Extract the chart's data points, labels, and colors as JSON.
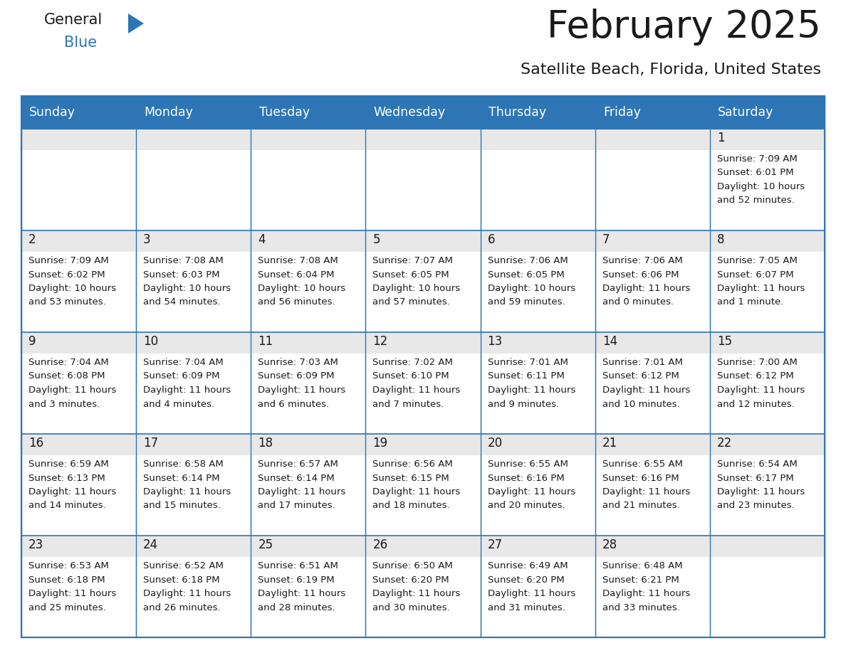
{
  "title": "February 2025",
  "subtitle": "Satellite Beach, Florida, United States",
  "days_of_week": [
    "Sunday",
    "Monday",
    "Tuesday",
    "Wednesday",
    "Thursday",
    "Friday",
    "Saturday"
  ],
  "header_bg": "#2e75b6",
  "header_text": "#ffffff",
  "cell_bg": "#ffffff",
  "cell_top_bg": "#e8e8e8",
  "cell_border": "#2e75b6",
  "day_num_color": "#1a1a1a",
  "info_text_color": "#1a1a1a",
  "title_color": "#1a1a1a",
  "subtitle_color": "#1a1a1a",
  "logo_general_color": "#1a1a1a",
  "logo_blue_color": "#2e75b6",
  "calendar_data": [
    [
      null,
      null,
      null,
      null,
      null,
      null,
      {
        "day": 1,
        "sunrise": "7:09 AM",
        "sunset": "6:01 PM",
        "daylight_line1": "Daylight: 10 hours",
        "daylight_line2": "and 52 minutes."
      }
    ],
    [
      {
        "day": 2,
        "sunrise": "7:09 AM",
        "sunset": "6:02 PM",
        "daylight_line1": "Daylight: 10 hours",
        "daylight_line2": "and 53 minutes."
      },
      {
        "day": 3,
        "sunrise": "7:08 AM",
        "sunset": "6:03 PM",
        "daylight_line1": "Daylight: 10 hours",
        "daylight_line2": "and 54 minutes."
      },
      {
        "day": 4,
        "sunrise": "7:08 AM",
        "sunset": "6:04 PM",
        "daylight_line1": "Daylight: 10 hours",
        "daylight_line2": "and 56 minutes."
      },
      {
        "day": 5,
        "sunrise": "7:07 AM",
        "sunset": "6:05 PM",
        "daylight_line1": "Daylight: 10 hours",
        "daylight_line2": "and 57 minutes."
      },
      {
        "day": 6,
        "sunrise": "7:06 AM",
        "sunset": "6:05 PM",
        "daylight_line1": "Daylight: 10 hours",
        "daylight_line2": "and 59 minutes."
      },
      {
        "day": 7,
        "sunrise": "7:06 AM",
        "sunset": "6:06 PM",
        "daylight_line1": "Daylight: 11 hours",
        "daylight_line2": "and 0 minutes."
      },
      {
        "day": 8,
        "sunrise": "7:05 AM",
        "sunset": "6:07 PM",
        "daylight_line1": "Daylight: 11 hours",
        "daylight_line2": "and 1 minute."
      }
    ],
    [
      {
        "day": 9,
        "sunrise": "7:04 AM",
        "sunset": "6:08 PM",
        "daylight_line1": "Daylight: 11 hours",
        "daylight_line2": "and 3 minutes."
      },
      {
        "day": 10,
        "sunrise": "7:04 AM",
        "sunset": "6:09 PM",
        "daylight_line1": "Daylight: 11 hours",
        "daylight_line2": "and 4 minutes."
      },
      {
        "day": 11,
        "sunrise": "7:03 AM",
        "sunset": "6:09 PM",
        "daylight_line1": "Daylight: 11 hours",
        "daylight_line2": "and 6 minutes."
      },
      {
        "day": 12,
        "sunrise": "7:02 AM",
        "sunset": "6:10 PM",
        "daylight_line1": "Daylight: 11 hours",
        "daylight_line2": "and 7 minutes."
      },
      {
        "day": 13,
        "sunrise": "7:01 AM",
        "sunset": "6:11 PM",
        "daylight_line1": "Daylight: 11 hours",
        "daylight_line2": "and 9 minutes."
      },
      {
        "day": 14,
        "sunrise": "7:01 AM",
        "sunset": "6:12 PM",
        "daylight_line1": "Daylight: 11 hours",
        "daylight_line2": "and 10 minutes."
      },
      {
        "day": 15,
        "sunrise": "7:00 AM",
        "sunset": "6:12 PM",
        "daylight_line1": "Daylight: 11 hours",
        "daylight_line2": "and 12 minutes."
      }
    ],
    [
      {
        "day": 16,
        "sunrise": "6:59 AM",
        "sunset": "6:13 PM",
        "daylight_line1": "Daylight: 11 hours",
        "daylight_line2": "and 14 minutes."
      },
      {
        "day": 17,
        "sunrise": "6:58 AM",
        "sunset": "6:14 PM",
        "daylight_line1": "Daylight: 11 hours",
        "daylight_line2": "and 15 minutes."
      },
      {
        "day": 18,
        "sunrise": "6:57 AM",
        "sunset": "6:14 PM",
        "daylight_line1": "Daylight: 11 hours",
        "daylight_line2": "and 17 minutes."
      },
      {
        "day": 19,
        "sunrise": "6:56 AM",
        "sunset": "6:15 PM",
        "daylight_line1": "Daylight: 11 hours",
        "daylight_line2": "and 18 minutes."
      },
      {
        "day": 20,
        "sunrise": "6:55 AM",
        "sunset": "6:16 PM",
        "daylight_line1": "Daylight: 11 hours",
        "daylight_line2": "and 20 minutes."
      },
      {
        "day": 21,
        "sunrise": "6:55 AM",
        "sunset": "6:16 PM",
        "daylight_line1": "Daylight: 11 hours",
        "daylight_line2": "and 21 minutes."
      },
      {
        "day": 22,
        "sunrise": "6:54 AM",
        "sunset": "6:17 PM",
        "daylight_line1": "Daylight: 11 hours",
        "daylight_line2": "and 23 minutes."
      }
    ],
    [
      {
        "day": 23,
        "sunrise": "6:53 AM",
        "sunset": "6:18 PM",
        "daylight_line1": "Daylight: 11 hours",
        "daylight_line2": "and 25 minutes."
      },
      {
        "day": 24,
        "sunrise": "6:52 AM",
        "sunset": "6:18 PM",
        "daylight_line1": "Daylight: 11 hours",
        "daylight_line2": "and 26 minutes."
      },
      {
        "day": 25,
        "sunrise": "6:51 AM",
        "sunset": "6:19 PM",
        "daylight_line1": "Daylight: 11 hours",
        "daylight_line2": "and 28 minutes."
      },
      {
        "day": 26,
        "sunrise": "6:50 AM",
        "sunset": "6:20 PM",
        "daylight_line1": "Daylight: 11 hours",
        "daylight_line2": "and 30 minutes."
      },
      {
        "day": 27,
        "sunrise": "6:49 AM",
        "sunset": "6:20 PM",
        "daylight_line1": "Daylight: 11 hours",
        "daylight_line2": "and 31 minutes."
      },
      {
        "day": 28,
        "sunrise": "6:48 AM",
        "sunset": "6:21 PM",
        "daylight_line1": "Daylight: 11 hours",
        "daylight_line2": "and 33 minutes."
      },
      null
    ]
  ]
}
